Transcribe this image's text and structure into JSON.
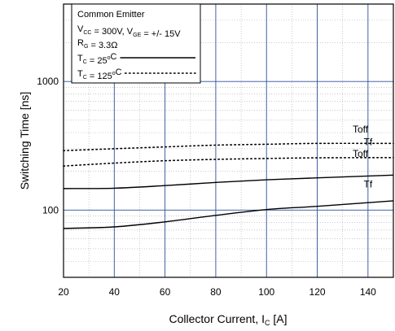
{
  "chart_data": {
    "type": "line",
    "xlabel": {
      "main": "Collector Current, I",
      "sub": "C",
      "unit": " [A]"
    },
    "ylabel": "Switching Time [ns]",
    "x_scale": "linear",
    "y_scale": "log",
    "xlim": [
      20,
      150
    ],
    "ylim": [
      30,
      4000
    ],
    "x_ticks": [
      20,
      40,
      60,
      80,
      100,
      120,
      140
    ],
    "x_tick_labels": [
      "20",
      "40",
      "60",
      "80",
      "100",
      "120",
      "140"
    ],
    "y_ticks": [
      100,
      1000
    ],
    "y_tick_labels": [
      "100",
      "1000"
    ],
    "grid": "major-and-minor",
    "colors": {
      "major_grid": "#2f4f9a",
      "minor_grid": "#a9a9a9",
      "series": "#000000"
    },
    "legend": {
      "placement": "top-left",
      "lines": [
        {
          "parts": [
            {
              "t": "Common Emitter"
            }
          ]
        },
        {
          "parts": [
            {
              "t": "V"
            },
            {
              "t": "CC",
              "sub": true
            },
            {
              "t": " = 300V, V"
            },
            {
              "t": "GE",
              "sub": true
            },
            {
              "t": " = +/- 15V"
            }
          ]
        },
        {
          "parts": [
            {
              "t": "R"
            },
            {
              "t": "G",
              "sub": true
            },
            {
              "t": " = 3.3Ω"
            }
          ]
        },
        {
          "parts": [
            {
              "t": "T"
            },
            {
              "t": "C",
              "sub": true
            },
            {
              "t": " = 25"
            },
            {
              "t": "o",
              "sup": true
            },
            {
              "t": "C"
            }
          ],
          "style": "solid"
        },
        {
          "parts": [
            {
              "t": "T"
            },
            {
              "t": "C",
              "sub": true
            },
            {
              "t": " = 125"
            },
            {
              "t": "o",
              "sup": true
            },
            {
              "t": "C"
            }
          ],
          "style": "dotted"
        }
      ]
    },
    "series": [
      {
        "label": "Toff",
        "condition": "125C",
        "style": "dotted",
        "x": [
          20,
          40,
          60,
          80,
          100,
          120,
          150
        ],
        "y": [
          290,
          300,
          310,
          320,
          325,
          330,
          330
        ]
      },
      {
        "label": "Tf",
        "condition": "125C",
        "style": "dotted",
        "x": [
          20,
          40,
          60,
          80,
          100,
          120,
          150
        ],
        "y": [
          220,
          232,
          242,
          248,
          252,
          255,
          256
        ]
      },
      {
        "label": "Toff",
        "condition": "25C",
        "style": "solid",
        "x": [
          20,
          40,
          60,
          80,
          100,
          120,
          150
        ],
        "y": [
          147,
          148,
          155,
          164,
          172,
          178,
          187
        ]
      },
      {
        "label": "Tf",
        "condition": "25C",
        "style": "solid",
        "x": [
          20,
          40,
          60,
          80,
          100,
          120,
          150
        ],
        "y": [
          72,
          74,
          81,
          91,
          101,
          107,
          118
        ]
      }
    ],
    "series_label_positions": [
      {
        "text": "Toff",
        "x": 137,
        "y": 400
      },
      {
        "text": "Tf",
        "x": 140,
        "y": 320
      },
      {
        "text": "Toff",
        "x": 137,
        "y": 258
      },
      {
        "text": "Tf",
        "x": 140,
        "y": 150
      }
    ]
  }
}
